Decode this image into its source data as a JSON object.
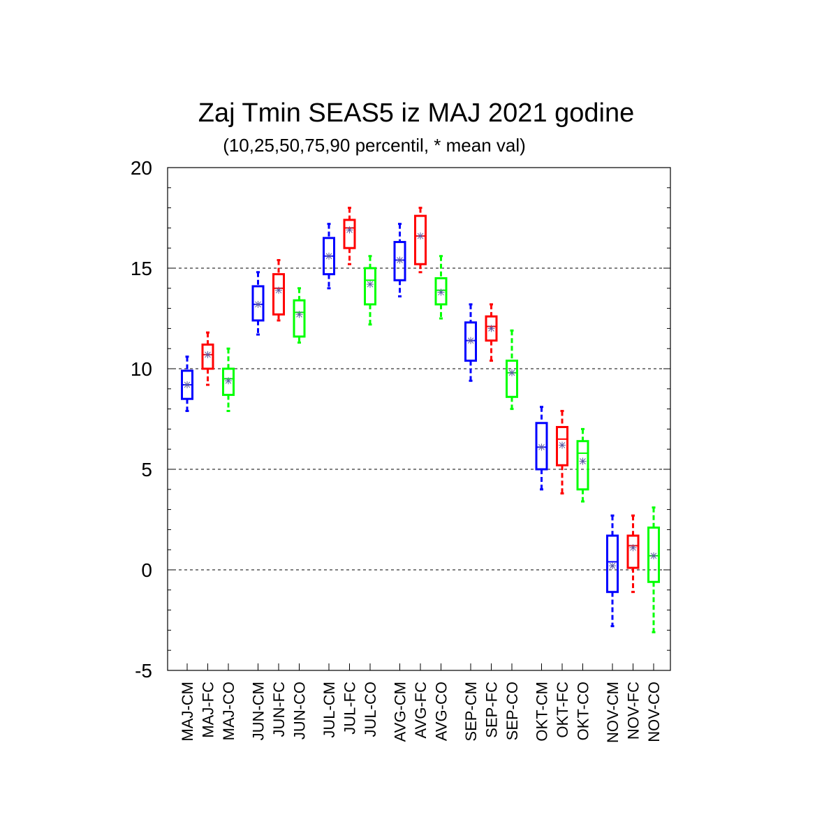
{
  "chart_data": {
    "type": "box",
    "title": "Zaj Tmin SEAS5 iz MAJ 2021 godine",
    "subtitle": "(10,25,50,75,90 percentil, * mean val)",
    "xlabel": "",
    "ylabel": "",
    "ylim": [
      -5,
      20
    ],
    "yticks": [
      -5,
      0,
      5,
      10,
      15,
      20
    ],
    "grid": "horizontal dashed",
    "colors": {
      "CM": "#0000ff",
      "FC": "#ff0000",
      "CO": "#00ff00"
    },
    "boxes": [
      {
        "label": "MAJ-CM",
        "kind": "CM",
        "p10": 7.9,
        "p25": 8.5,
        "p50": 9.2,
        "p75": 9.9,
        "p90": 10.6,
        "mean": 9.2
      },
      {
        "label": "MAJ-FC",
        "kind": "FC",
        "p10": 9.2,
        "p25": 10.0,
        "p50": 10.7,
        "p75": 11.2,
        "p90": 11.8,
        "mean": 10.7
      },
      {
        "label": "MAJ-CO",
        "kind": "CO",
        "p10": 7.9,
        "p25": 8.7,
        "p50": 9.5,
        "p75": 10.0,
        "p90": 11.0,
        "mean": 9.4
      },
      {
        "label": "JUN-CM",
        "kind": "CM",
        "p10": 11.7,
        "p25": 12.4,
        "p50": 13.2,
        "p75": 14.1,
        "p90": 14.8,
        "mean": 13.2
      },
      {
        "label": "JUN-FC",
        "kind": "FC",
        "p10": 12.4,
        "p25": 12.7,
        "p50": 14.0,
        "p75": 14.7,
        "p90": 15.4,
        "mean": 13.9
      },
      {
        "label": "JUN-CO",
        "kind": "CO",
        "p10": 11.3,
        "p25": 11.6,
        "p50": 12.8,
        "p75": 13.4,
        "p90": 14.0,
        "mean": 12.7
      },
      {
        "label": "JUL-CM",
        "kind": "CM",
        "p10": 14.0,
        "p25": 14.7,
        "p50": 15.6,
        "p75": 16.5,
        "p90": 17.2,
        "mean": 15.6
      },
      {
        "label": "JUL-FC",
        "kind": "FC",
        "p10": 15.2,
        "p25": 16.0,
        "p50": 17.0,
        "p75": 17.4,
        "p90": 18.0,
        "mean": 16.9
      },
      {
        "label": "JUL-CO",
        "kind": "CO",
        "p10": 12.2,
        "p25": 13.2,
        "p50": 14.4,
        "p75": 15.0,
        "p90": 15.6,
        "mean": 14.2
      },
      {
        "label": "AVG-CM",
        "kind": "CM",
        "p10": 13.6,
        "p25": 14.4,
        "p50": 15.4,
        "p75": 16.3,
        "p90": 17.2,
        "mean": 15.4
      },
      {
        "label": "AVG-FC",
        "kind": "FC",
        "p10": 14.8,
        "p25": 15.2,
        "p50": 16.6,
        "p75": 17.6,
        "p90": 18.0,
        "mean": 16.6
      },
      {
        "label": "AVG-CO",
        "kind": "CO",
        "p10": 12.5,
        "p25": 13.2,
        "p50": 13.9,
        "p75": 14.5,
        "p90": 15.6,
        "mean": 13.8
      },
      {
        "label": "SEP-CM",
        "kind": "CM",
        "p10": 9.4,
        "p25": 10.4,
        "p50": 11.4,
        "p75": 12.3,
        "p90": 13.2,
        "mean": 11.4
      },
      {
        "label": "SEP-FC",
        "kind": "FC",
        "p10": 10.4,
        "p25": 11.4,
        "p50": 12.1,
        "p75": 12.6,
        "p90": 13.2,
        "mean": 12.0
      },
      {
        "label": "SEP-CO",
        "kind": "CO",
        "p10": 8.0,
        "p25": 8.6,
        "p50": 9.8,
        "p75": 10.4,
        "p90": 11.9,
        "mean": 9.8
      },
      {
        "label": "OKT-CM",
        "kind": "CM",
        "p10": 4.0,
        "p25": 5.0,
        "p50": 6.1,
        "p75": 7.3,
        "p90": 8.1,
        "mean": 6.1
      },
      {
        "label": "OKT-FC",
        "kind": "FC",
        "p10": 3.8,
        "p25": 5.2,
        "p50": 6.5,
        "p75": 7.1,
        "p90": 7.9,
        "mean": 6.2
      },
      {
        "label": "OKT-CO",
        "kind": "CO",
        "p10": 3.4,
        "p25": 4.0,
        "p50": 5.8,
        "p75": 6.4,
        "p90": 7.0,
        "mean": 5.4
      },
      {
        "label": "NOV-CM",
        "kind": "CM",
        "p10": -2.8,
        "p25": -1.1,
        "p50": 0.4,
        "p75": 1.7,
        "p90": 2.7,
        "mean": 0.2
      },
      {
        "label": "NOV-FC",
        "kind": "FC",
        "p10": -1.1,
        "p25": 0.1,
        "p50": 1.2,
        "p75": 1.7,
        "p90": 2.7,
        "mean": 1.1
      },
      {
        "label": "NOV-CO",
        "kind": "CO",
        "p10": -3.1,
        "p25": -0.6,
        "p50": 0.7,
        "p75": 2.1,
        "p90": 3.1,
        "mean": 0.7
      }
    ]
  }
}
